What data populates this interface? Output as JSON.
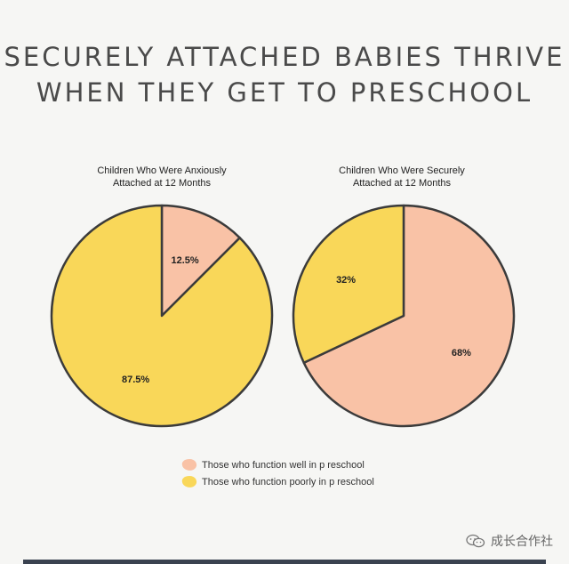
{
  "title_lines": [
    "SECURELY ATTACHED BABIES THRIVE",
    "WHEN THEY GET TO PRESCHOOL"
  ],
  "colors": {
    "well": "#f9c2a6",
    "poorly": "#f9d759",
    "stroke": "#3b3b3b"
  },
  "chart_data": [
    {
      "type": "pie",
      "title_lines": [
        "Children Who Were Anxiously",
        "Attached at 12 Months"
      ],
      "labels": [
        "Those who function well in p reschool",
        "Those who function poorly in p reschool"
      ],
      "values": [
        12.5,
        87.5
      ],
      "data_labels": [
        "12.5%",
        "87.5%"
      ]
    },
    {
      "type": "pie",
      "title_lines": [
        "Children Who Were Securely",
        "Attached at 12 Months"
      ],
      "labels": [
        "Those who function well in p reschool",
        "Those who function poorly in p reschool"
      ],
      "values": [
        68,
        32
      ],
      "data_labels": [
        "68%",
        "32%"
      ]
    }
  ],
  "legend": [
    {
      "label": "Those who function well in p reschool",
      "color_key": "well"
    },
    {
      "label": "Those who function poorly in p reschool",
      "color_key": "poorly"
    }
  ],
  "watermark": {
    "text": "成长合作社",
    "icon": "wechat-icon"
  }
}
